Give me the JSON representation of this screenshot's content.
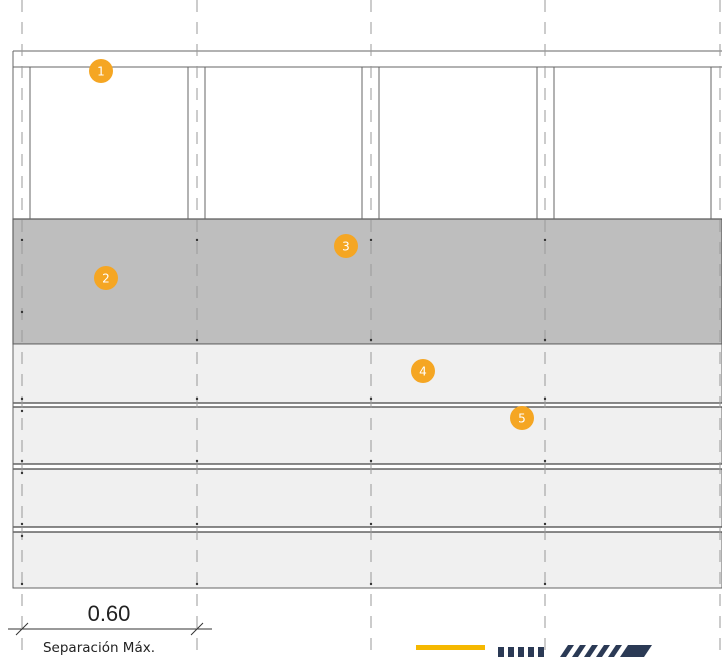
{
  "callouts": [
    {
      "number": "1"
    },
    {
      "number": "2"
    },
    {
      "number": "3"
    },
    {
      "number": "4"
    },
    {
      "number": "5"
    }
  ],
  "dimension": {
    "value": "0.60",
    "label": "Separación Máx."
  },
  "colors": {
    "badge": "#f5a623",
    "band_dark": "#bebebe",
    "band_light": "#f0f0f0",
    "line": "#555555",
    "dashed_axis": "#999999",
    "logo_yellow": "#f5b800",
    "logo_navy": "#2b3a55"
  }
}
